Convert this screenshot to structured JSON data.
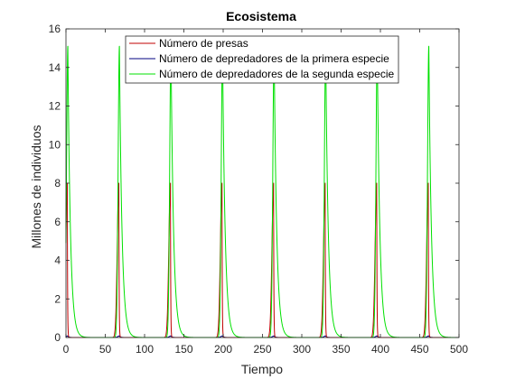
{
  "chart_data": {
    "type": "line",
    "title": "Ecosistema",
    "xlabel": "Tiempo",
    "ylabel": "Millones de individuos",
    "xlim": [
      0,
      500
    ],
    "ylim": [
      0,
      16
    ],
    "xticks": [
      0,
      50,
      100,
      150,
      200,
      250,
      300,
      350,
      400,
      450,
      500
    ],
    "yticks": [
      0,
      2,
      4,
      6,
      8,
      10,
      12,
      14,
      16
    ],
    "grid": false,
    "legend_position": "top",
    "period": 65.6,
    "cycle_starts": [
      1.7,
      67.3,
      132.9,
      198.5,
      264.1,
      329.7,
      395.3,
      460.9
    ],
    "series": [
      {
        "name": "Número de presas",
        "color": "#c00000",
        "peak": 8.0,
        "peak_offset": 0.0,
        "rise": 2.0,
        "decay": 0.35
      },
      {
        "name": "Número de depredadores de la primera especie",
        "color": "#000080",
        "peak": 0.08,
        "peak_offset": 0.6,
        "rise": 2.0,
        "decay": 1.5
      },
      {
        "name": "Número de depredadores de la segunda especie",
        "color": "#00e000",
        "peak": 15.1,
        "peak_offset": 0.7,
        "rise": 1.6,
        "decay": 3.3
      }
    ]
  }
}
